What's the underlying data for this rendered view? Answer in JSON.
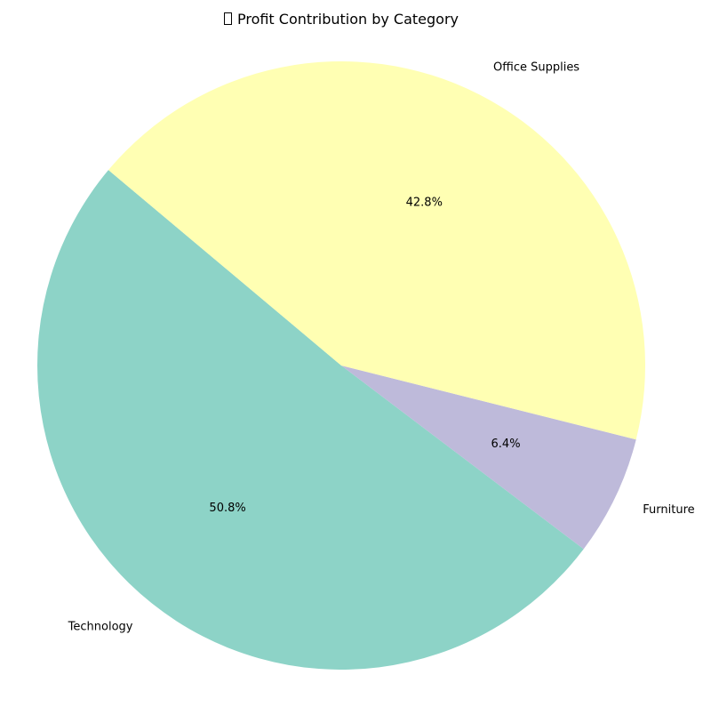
{
  "chart_data": {
    "type": "pie",
    "title": "Profit Contribution by Category",
    "title_icon": "missing-glyph-box",
    "start_angle_deg": 140,
    "direction": "counterclockwise",
    "slices": [
      {
        "label": "Technology",
        "value": 50.8,
        "pct_label": "50.8%",
        "color": "#8dd3c7"
      },
      {
        "label": "Furniture",
        "value": 6.4,
        "pct_label": "6.4%",
        "color": "#bebada"
      },
      {
        "label": "Office Supplies",
        "value": 42.8,
        "pct_label": "42.8%",
        "color": "#ffffb3"
      }
    ]
  }
}
